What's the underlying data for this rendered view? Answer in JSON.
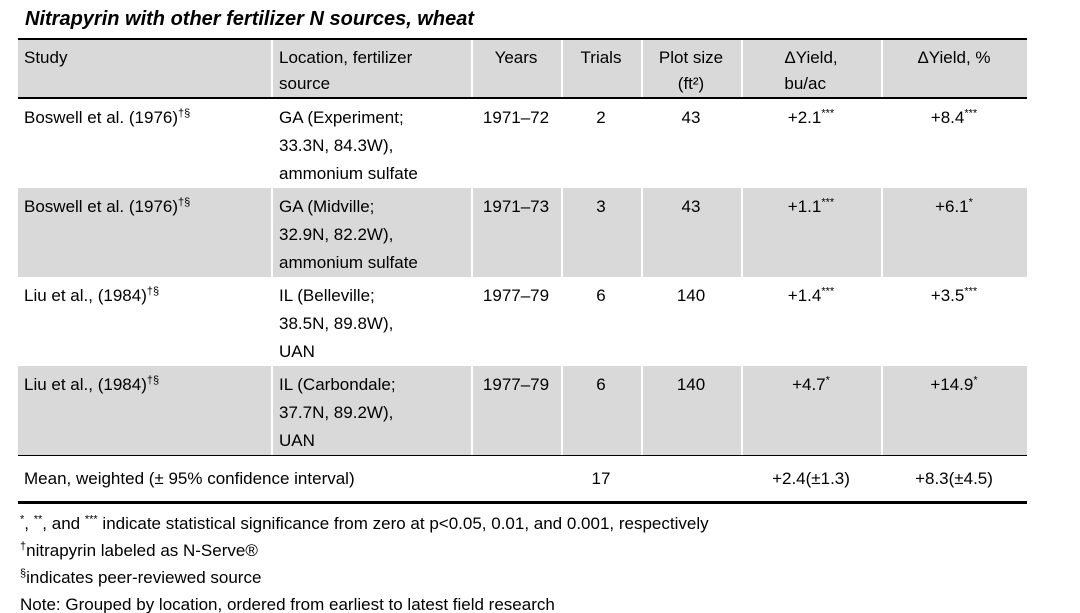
{
  "title": "Nitrapyrin with other fertilizer N sources, wheat",
  "colors": {
    "row_shading": "#d9d9d9",
    "border": "#000000",
    "text": "#000000",
    "background": "#ffffff"
  },
  "table": {
    "headers": {
      "study": "Study",
      "location": "Location, fertilizer\nsource",
      "years": "Years",
      "trials": "Trials",
      "plot_size": "Plot size\n(ft²)",
      "dyield_bu": "ΔYield,\nbu/ac",
      "dyield_pct": "ΔYield, %"
    },
    "rows": [
      {
        "study": "Boswell et al. (1976)",
        "study_sup": "†§",
        "location": "GA (Experiment;\n33.3N, 84.3W),\nammonium sulfate",
        "years": "1971–72",
        "trials": "2",
        "plot": "43",
        "dyield_bu": "+2.1",
        "dyield_bu_sig": "***",
        "dyield_pct": "+8.4",
        "dyield_pct_sig": "***"
      },
      {
        "study": "Boswell et al. (1976)",
        "study_sup": "†§",
        "location": "GA (Midville;\n32.9N, 82.2W),\nammonium sulfate",
        "years": "1971–73",
        "trials": "3",
        "plot": "43",
        "dyield_bu": "+1.1",
        "dyield_bu_sig": "***",
        "dyield_pct": "+6.1",
        "dyield_pct_sig": "*"
      },
      {
        "study": "Liu et al., (1984)",
        "study_sup": "†§",
        "location": "IL (Belleville;\n38.5N, 89.8W),\nUAN",
        "years": "1977–79",
        "trials": "6",
        "plot": "140",
        "dyield_bu": "+1.4",
        "dyield_bu_sig": "***",
        "dyield_pct": "+3.5",
        "dyield_pct_sig": "***"
      },
      {
        "study": "Liu et al., (1984)",
        "study_sup": "†§",
        "location": "IL (Carbondale;\n37.7N, 89.2W),\nUAN",
        "years": "1977–79",
        "trials": "6",
        "plot": "140",
        "dyield_bu": "+4.7",
        "dyield_bu_sig": "*",
        "dyield_pct": "+14.9",
        "dyield_pct_sig": "*"
      }
    ],
    "mean": {
      "label": "Mean, weighted (± 95% confidence interval)",
      "trials": "17",
      "plot": "",
      "dyield_bu": "+2.4(±1.3)",
      "dyield_pct": "+8.3(±4.5)"
    }
  },
  "footnotes": {
    "sig": {
      "s1": "*",
      "t1": ", ",
      "s2": "**",
      "t2": ", and ",
      "s3": "***",
      "t3": " indicate statistical significance from zero at p<0.05, 0.01, and 0.001, respectively"
    },
    "dagger": {
      "sup": "†",
      "text": "nitrapyrin labeled as N-Serve®"
    },
    "section": {
      "sup": "§",
      "text": "indicates peer-reviewed source"
    },
    "note": "Note: Grouped by location, ordered from earliest to latest field research"
  }
}
